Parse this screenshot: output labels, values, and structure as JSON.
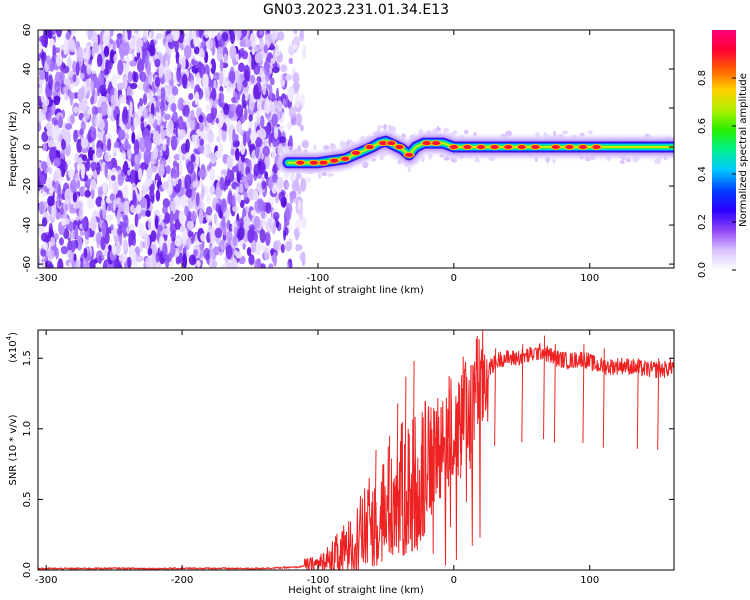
{
  "figure_title": "GN03.2023.231.01.34.E13",
  "chart_data": [
    {
      "type": "heatmap",
      "xlabel": "Height of straight line (km)",
      "ylabel": "Frequency (Hz)",
      "xlim": [
        -306,
        162
      ],
      "ylim": [
        -62,
        60
      ],
      "x_ticks": [
        -300,
        -200,
        -100,
        0,
        100
      ],
      "y_ticks": [
        -60,
        -40,
        -20,
        0,
        20,
        40,
        60
      ],
      "noise_region_x": [
        -306,
        -118
      ],
      "noise_fade_x": [
        -130,
        -105
      ],
      "ridge": [
        [
          -122,
          -8
        ],
        [
          -100,
          -8
        ],
        [
          -90,
          -7
        ],
        [
          -80,
          -6
        ],
        [
          -70,
          -3
        ],
        [
          -60,
          0
        ],
        [
          -55,
          2
        ],
        [
          -50,
          3
        ],
        [
          -44,
          1
        ],
        [
          -38,
          -1
        ],
        [
          -33,
          -4
        ],
        [
          -28,
          0
        ],
        [
          -22,
          2
        ],
        [
          -15,
          2
        ],
        [
          -8,
          2
        ],
        [
          0,
          0
        ],
        [
          20,
          0
        ],
        [
          40,
          0
        ],
        [
          60,
          0
        ],
        [
          80,
          0
        ],
        [
          100,
          0
        ],
        [
          120,
          0
        ],
        [
          140,
          0
        ],
        [
          162,
          0
        ]
      ],
      "hotspots": [
        [
          -113,
          -8
        ],
        [
          -103,
          -8
        ],
        [
          -96,
          -8
        ],
        [
          -88,
          -7
        ],
        [
          -80,
          -6
        ],
        [
          -72,
          -3
        ],
        [
          -62,
          0
        ],
        [
          -52,
          2
        ],
        [
          -46,
          2
        ],
        [
          -40,
          0
        ],
        [
          -33,
          -4
        ],
        [
          -20,
          2
        ],
        [
          -13,
          2
        ],
        [
          0,
          0
        ],
        [
          10,
          0
        ],
        [
          20,
          0
        ],
        [
          30,
          0
        ],
        [
          40,
          0
        ],
        [
          50,
          0
        ],
        [
          60,
          0
        ],
        [
          75,
          0
        ],
        [
          85,
          0
        ],
        [
          95,
          0
        ],
        [
          105,
          0
        ]
      ],
      "colorbar": {
        "label": "Normalized spectral amplitude",
        "range": [
          0,
          1
        ],
        "ticks": [
          "0.0",
          "0.2",
          "0.4",
          "0.6",
          "0.8"
        ],
        "colors": [
          "#ffffff",
          "#d9c2ff",
          "#8c42f5",
          "#2a00ff",
          "#0040ff",
          "#00c8ff",
          "#00f090",
          "#28f000",
          "#b0f000",
          "#ffd000",
          "#ff6000",
          "#ff0033",
          "#ff0078"
        ]
      }
    },
    {
      "type": "line",
      "xlabel": "Height of straight line (km)",
      "ylabel": "SNR (10 * v/v)",
      "y_multiplier": "(x10",
      "y_exponent": "4",
      "y_multiplier_close": ")",
      "xlim": [
        -306,
        162
      ],
      "ylim": [
        0,
        1.7
      ],
      "x_ticks": [
        -300,
        -200,
        -100,
        0,
        100
      ],
      "y_ticks": [
        0.0,
        0.5,
        1.0,
        1.5
      ],
      "y_tick_labels": [
        "0.0",
        "0.5",
        "1.0",
        "1.5"
      ],
      "color": "#ee2222",
      "series": [
        {
          "x": [
            -306,
            -280,
            -250,
            -220,
            -200,
            -180,
            -150,
            -130,
            -115,
            -105,
            -98,
            -90,
            -82,
            -75,
            -68,
            -60,
            -52,
            -45,
            -38,
            -30,
            -22,
            -15,
            -8,
            0,
            8,
            15,
            22,
            28,
            35,
            45,
            55,
            65,
            75,
            85,
            95,
            105,
            115,
            125,
            135,
            145,
            155,
            162
          ],
          "values": [
            0.01,
            0.01,
            0.012,
            0.01,
            0.011,
            0.012,
            0.01,
            0.015,
            0.02,
            0.04,
            0.05,
            0.08,
            0.12,
            0.18,
            0.25,
            0.35,
            0.42,
            0.5,
            0.55,
            0.6,
            0.7,
            0.8,
            0.95,
            1.02,
            1.12,
            1.25,
            1.35,
            1.45,
            1.5,
            1.5,
            1.52,
            1.55,
            1.5,
            1.48,
            1.5,
            1.45,
            1.44,
            1.45,
            1.43,
            1.42,
            1.42,
            1.45
          ]
        }
      ],
      "spikes": [
        [
          -58,
          0.85
        ],
        [
          -48,
          0.95
        ],
        [
          -42,
          1.18
        ],
        [
          -36,
          1.37
        ],
        [
          -30,
          1.48
        ],
        [
          -24,
          1.12
        ],
        [
          -18,
          1.05
        ],
        [
          -10,
          1.15
        ],
        [
          -4,
          1.28
        ],
        [
          5,
          1.38
        ],
        [
          12,
          1.45
        ],
        [
          30,
          1.57
        ],
        [
          50,
          1.6
        ],
        [
          66,
          1.66
        ],
        [
          74,
          1.6
        ],
        [
          95,
          1.6
        ],
        [
          110,
          1.57
        ],
        [
          135,
          1.5
        ],
        [
          150,
          1.5
        ]
      ]
    }
  ]
}
